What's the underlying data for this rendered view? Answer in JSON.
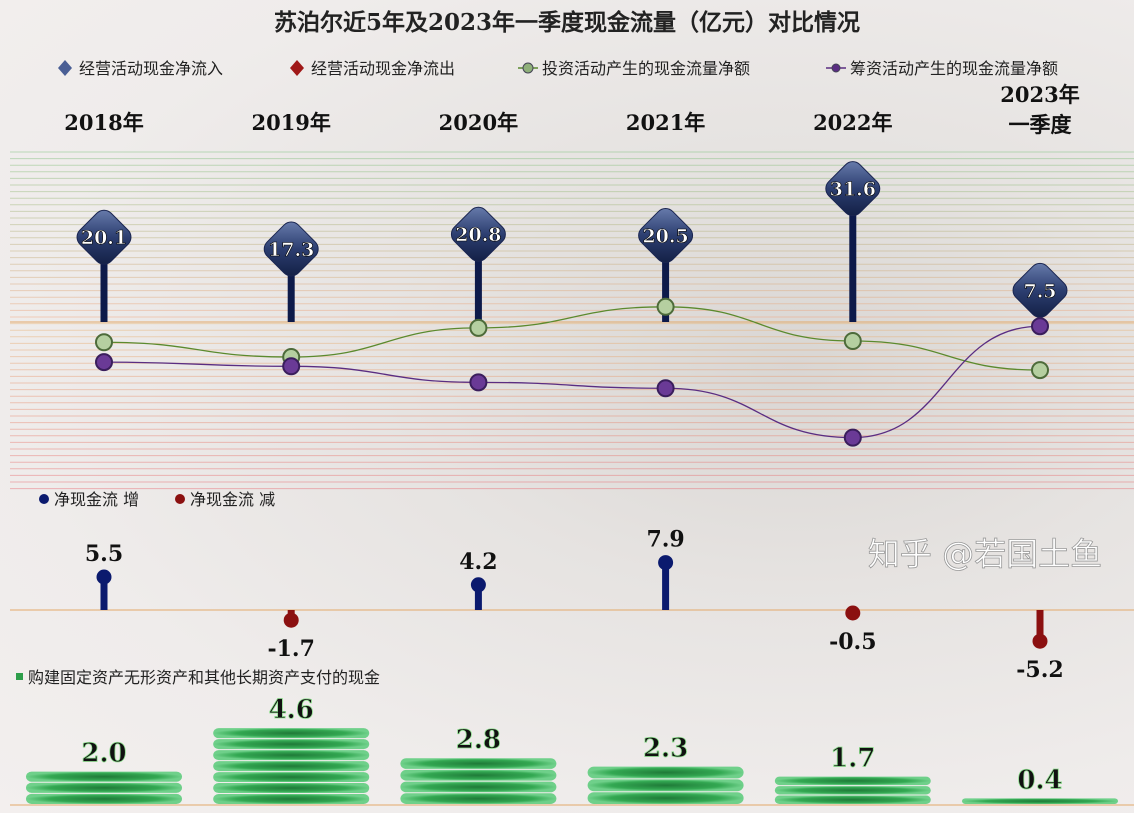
{
  "chart_data": [
    {
      "type": "line",
      "title": "苏泊尔近5年及2023年一季度现金流量（亿元）对比情况",
      "categories": [
        "2018年",
        "2019年",
        "2020年",
        "2021年",
        "2022年",
        "2023年 一季度"
      ],
      "category_lines": [
        [
          "2018年"
        ],
        [
          "2019年"
        ],
        [
          "2020年"
        ],
        [
          "2021年"
        ],
        [
          "2022年"
        ],
        [
          "2023年",
          "一季度"
        ]
      ],
      "legend": [
        "经营活动现金净流入",
        "经营活动现金净流出",
        "投资活动产生的现金流量净额",
        "筹资活动产生的现金流量净额"
      ],
      "legend_position": "top",
      "series": [
        {
          "name": "经营活动现金净流入",
          "style": "diamond-pin",
          "color": "#2c3e70",
          "values": [
            20.1,
            17.3,
            20.8,
            20.5,
            31.6,
            7.5
          ],
          "labels": [
            "20.1",
            "17.3",
            "20.8",
            "20.5",
            "31.6",
            "7.5"
          ]
        },
        {
          "name": "经营活动现金净流出",
          "style": "diamond-pin",
          "color": "#8b1010",
          "values": [
            null,
            null,
            null,
            null,
            null,
            null
          ]
        },
        {
          "name": "投资活动产生的现金流量净额",
          "style": "smooth-line",
          "color": "#5b8a2e",
          "values": [
            -4.8,
            -8.3,
            -1.4,
            3.6,
            -4.5,
            -11.4
          ]
        },
        {
          "name": "筹资活动产生的现金流量净额",
          "style": "smooth-line",
          "color": "#5a2d82",
          "values": [
            -9.5,
            -10.5,
            -14.3,
            -15.7,
            -27.4,
            -1.0
          ]
        }
      ]
    },
    {
      "type": "scatter",
      "legend": [
        "净现金流  增",
        "净现金流  减"
      ],
      "legend_colors": [
        "#0b1a6e",
        "#8b1010"
      ],
      "categories": [
        "2018年",
        "2019年",
        "2020年",
        "2021年",
        "2022年",
        "2023年 一季度"
      ],
      "values": [
        5.5,
        -1.7,
        4.2,
        7.9,
        -0.5,
        -5.2
      ],
      "labels": [
        "5.5",
        "-1.7",
        "4.2",
        "7.9",
        "-0.5",
        "-5.2"
      ]
    },
    {
      "type": "bar",
      "legend": [
        "购建固定资产无形资产和其他长期资产支付的现金"
      ],
      "color": "#2e9e4a",
      "categories": [
        "2018年",
        "2019年",
        "2020年",
        "2021年",
        "2022年",
        "2023年 一季度"
      ],
      "values": [
        2.0,
        4.6,
        2.8,
        2.3,
        1.7,
        0.4
      ],
      "labels": [
        "2.0",
        "4.6",
        "2.8",
        "2.3",
        "1.7",
        "0.4"
      ]
    }
  ],
  "watermark": "知乎 @若国土鱼"
}
